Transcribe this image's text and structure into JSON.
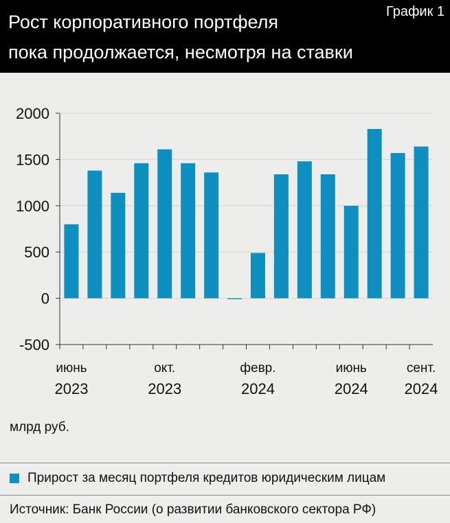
{
  "chart_data": {
    "type": "bar",
    "label": "График 1",
    "title": "Рост корпоративного портфеля\nпока продолжается, несмотря на ставки",
    "unit": "млрд руб.",
    "categories": [
      "июнь\n2023",
      null,
      null,
      null,
      "окт.\n2023",
      null,
      null,
      null,
      "февр.\n2024",
      null,
      null,
      null,
      "июнь\n2024",
      null,
      null,
      "сент.\n2024"
    ],
    "series": [
      {
        "name": "Прирост за месяц портфеля кредитов юридическим лицам",
        "color": "#0e8fbf",
        "values": [
          800,
          1380,
          1140,
          1460,
          1610,
          1460,
          1360,
          -10,
          490,
          1340,
          1480,
          1340,
          1000,
          1830,
          1570,
          1640
        ]
      }
    ],
    "ylim": [
      -500,
      2000
    ],
    "yticks": [
      -500,
      0,
      500,
      1000,
      1500,
      2000
    ],
    "grid": true,
    "source": "Источник: Банк России (о развитии банковского сектора РФ)"
  }
}
